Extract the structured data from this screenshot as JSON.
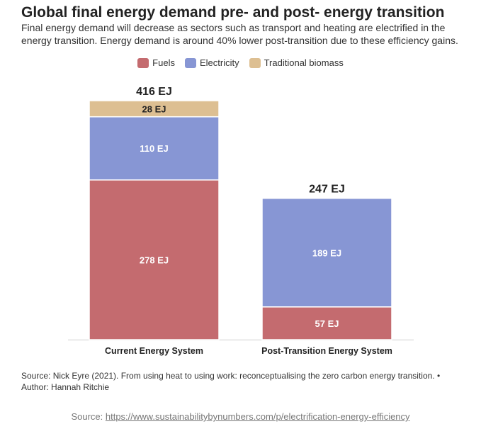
{
  "chart_data": {
    "type": "bar",
    "stacked": true,
    "title": "Global final energy demand pre- and post- energy transition",
    "subtitle": "Final energy demand will decrease as sectors such as transport and heating are electrified in the energy transition. Energy demand is around 40% lower post-transition due to these efficiency gains.",
    "categories": [
      "Current Energy System",
      "Post-Transition Energy System"
    ],
    "series": [
      {
        "name": "Fuels",
        "color": "#c46b6f",
        "values": [
          278,
          57
        ],
        "labels": [
          "278 EJ",
          "57 EJ"
        ]
      },
      {
        "name": "Electricity",
        "color": "#8796d4",
        "values": [
          110,
          189
        ],
        "labels": [
          "110 EJ",
          "189 EJ"
        ]
      },
      {
        "name": "Traditional biomass",
        "color": "#ddbf92",
        "values": [
          28,
          0
        ],
        "labels": [
          "28 EJ",
          ""
        ]
      }
    ],
    "totals": [
      416,
      247
    ],
    "total_labels": [
      "416 EJ",
      "247 EJ"
    ],
    "ylim": [
      0,
      416
    ],
    "legend_position": "top-center"
  },
  "source_note": "Source: Nick Eyre (2021). From using heat to using work: reconceptualising the zero carbon energy transition. • Author: Hannah Ritchie",
  "footer": {
    "prefix": "Source: ",
    "link_text": "https://www.sustainabilitybynumbers.com/p/electrification-energy-efficiency"
  }
}
